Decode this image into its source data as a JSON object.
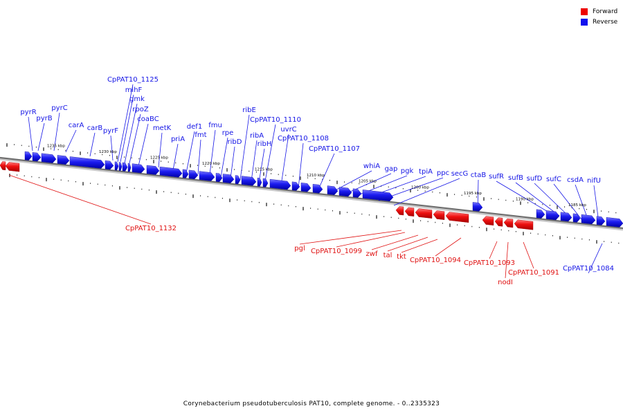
{
  "legend": {
    "forward_label": "Forward",
    "reverse_label": "Reverse",
    "forward_color": "#ee0000",
    "reverse_color": "#1010ee"
  },
  "caption": "Corynebacterium pseudotuberculosis PAT10, complete genome. - 0..2335323",
  "scale_labels": [
    "1235 kbp",
    "1230 kbp",
    "1225 kbp",
    "1220 kbp",
    "1215 kbp",
    "1210 kbp",
    "1205 kbp",
    "1200 kbp",
    "1195 kbp",
    "1190 kbp",
    "1185 kbp"
  ],
  "reverse_genes": [
    "pyrR",
    "pyrB",
    "pyrC",
    "carA",
    "carB",
    "pyrF",
    "CpPAT10_1125",
    "mihF",
    "gmk",
    "rpoZ",
    "coaBC",
    "metK",
    "priA",
    "def1",
    "fmt",
    "fmu",
    "rpe",
    "ribD",
    "ribE",
    "CpPAT10_1110",
    "ribA",
    "ribH",
    "uvrC",
    "CpPAT10_1108",
    "CpPAT10_1107",
    "whiA",
    "gap",
    "pgk",
    "tpiA",
    "ppc",
    "secG",
    "ctaB",
    "sufR",
    "sufB",
    "sufD",
    "sufC",
    "csdA",
    "nifU",
    "CpPAT10_1084"
  ],
  "forward_genes": [
    "CpPAT10_1132",
    "pgl",
    "CpPAT10_1099",
    "zwf",
    "tal",
    "tkt",
    "CpPAT10_1094",
    "CpPAT10_1093",
    "nodI",
    "CpPAT10_1091"
  ]
}
